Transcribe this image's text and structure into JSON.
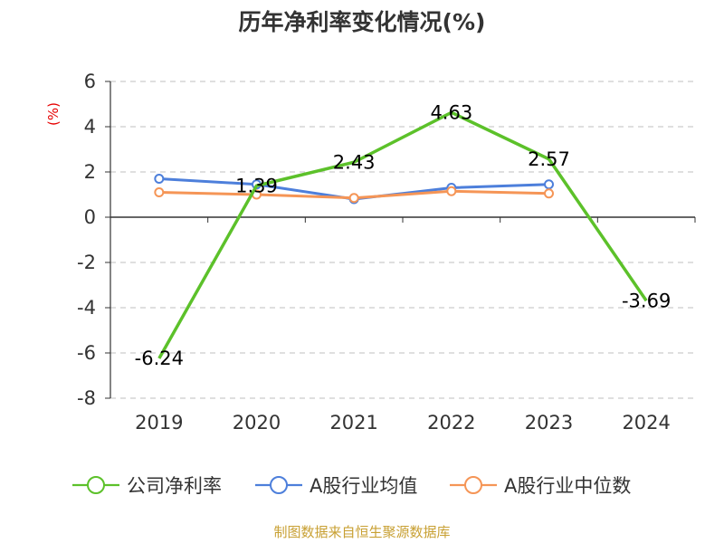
{
  "chart_data": {
    "type": "line",
    "title": "历年净利率变化情况(%)",
    "ylabel": "(%)",
    "xlabel": "",
    "categories": [
      "2019",
      "2020",
      "2021",
      "2022",
      "2023",
      "2024"
    ],
    "ylim": [
      -8,
      6
    ],
    "yticks": [
      -8,
      -6,
      -4,
      -2,
      0,
      2,
      4,
      6
    ],
    "grid": true,
    "legend_position": "bottom",
    "series": [
      {
        "name": "公司净利率",
        "color": "#5cc12a",
        "values": [
          -6.24,
          1.39,
          2.43,
          4.63,
          2.57,
          -3.69
        ],
        "labels": [
          "-6.24",
          "1.39",
          "2.43",
          "4.63",
          "2.57",
          "-3.69"
        ]
      },
      {
        "name": "A股行业均值",
        "color": "#4d7fdb",
        "values": [
          1.7,
          1.45,
          0.8,
          1.3,
          1.45,
          null
        ]
      },
      {
        "name": "A股行业中位数",
        "color": "#f59556",
        "values": [
          1.1,
          1.0,
          0.85,
          1.15,
          1.05,
          null
        ]
      }
    ]
  },
  "footer": {
    "source": "制图数据来自恒生聚源数据库"
  }
}
